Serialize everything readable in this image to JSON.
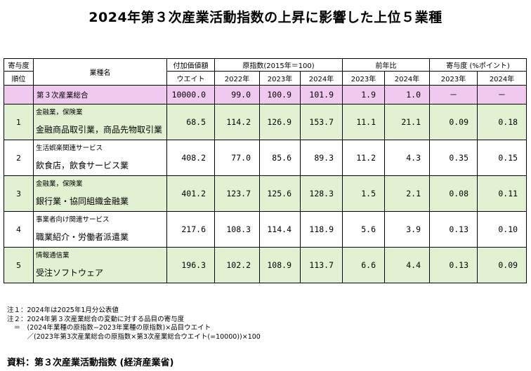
{
  "title": "2024年第３次産業活動指数の上昇に影響した上位５業種",
  "header": {
    "rank_top": "寄与度",
    "rank_bottom": "順位",
    "industry": "業種名",
    "weight_top": "付加価値額",
    "weight_bottom": "ウエイト",
    "index_group": "原指数(2015年＝100)",
    "yoy_group": "前年比",
    "contrib_group": "寄与度 (%ポイント)",
    "y2022": "2022年",
    "y2023": "2023年",
    "y2024": "2024年"
  },
  "total": {
    "name": "第３次産業総合",
    "weight": "10000.0",
    "idx2022": "99.0",
    "idx2023": "100.9",
    "idx2024": "101.9",
    "yoy2023": "1.9",
    "yoy2024": "1.0",
    "c2023": "－",
    "c2024": "－"
  },
  "rows": [
    {
      "rank": "1",
      "category": "金融業，保険業",
      "name": "金融商品取引業，商品先物取引業",
      "weight": "68.5",
      "idx2022": "114.2",
      "idx2023": "126.9",
      "idx2024": "153.7",
      "yoy2023": "11.1",
      "yoy2024": "21.1",
      "c2023": "0.09",
      "c2024": "0.18"
    },
    {
      "rank": "2",
      "category": "生活娯楽関連サービス",
      "name": "飲食店，飲食サービス業",
      "weight": "408.2",
      "idx2022": "77.0",
      "idx2023": "85.6",
      "idx2024": "89.3",
      "yoy2023": "11.2",
      "yoy2024": "4.3",
      "c2023": "0.35",
      "c2024": "0.15"
    },
    {
      "rank": "3",
      "category": "金融業，保険業",
      "name": "銀行業・協同組織金融業",
      "weight": "401.2",
      "idx2022": "123.7",
      "idx2023": "125.6",
      "idx2024": "128.3",
      "yoy2023": "1.5",
      "yoy2024": "2.1",
      "c2023": "0.08",
      "c2024": "0.11"
    },
    {
      "rank": "4",
      "category": "事業者向け関連サービス",
      "name": "職業紹介・労働者派遣業",
      "weight": "217.6",
      "idx2022": "108.3",
      "idx2023": "114.4",
      "idx2024": "118.9",
      "yoy2023": "5.6",
      "yoy2024": "3.9",
      "c2023": "0.13",
      "c2024": "0.10"
    },
    {
      "rank": "5",
      "category": "情報通信業",
      "name": "受注ソフトウェア",
      "weight": "196.3",
      "idx2022": "102.2",
      "idx2023": "108.9",
      "idx2024": "113.7",
      "yoy2023": "6.6",
      "yoy2024": "4.4",
      "c2023": "0.13",
      "c2024": "0.09"
    }
  ],
  "notes": [
    "注１：2024年は2025年1月分公表値",
    "注２：2024年第３次産業総合の変動に対する品目の寄与度",
    "　＝　(2024年業種の原指数−2023年業種の原指数)×品目ウエイト",
    "　　　／(2023年第3次産業総合の原指数×第3次産業総合ウエイト(=10000))×100"
  ],
  "source": "資料：第３次産業活動指数 (経済産業省)"
}
